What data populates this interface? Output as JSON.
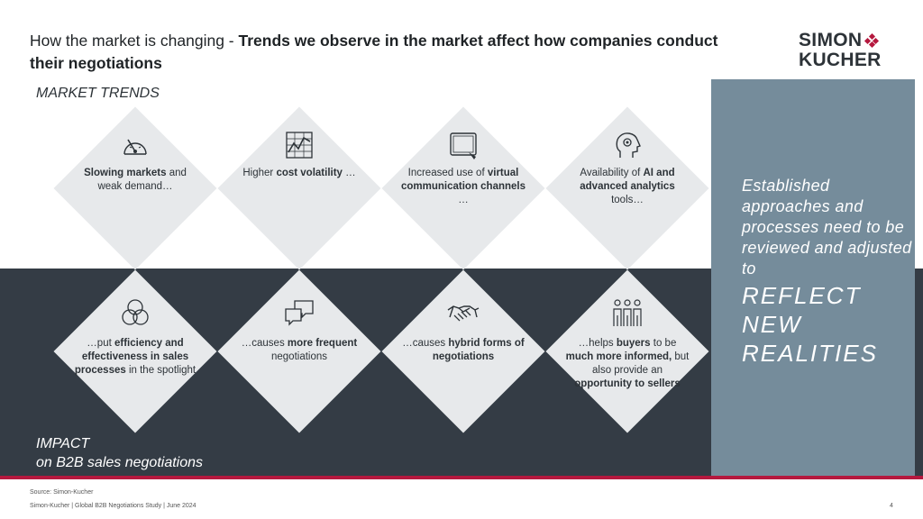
{
  "title": {
    "lead": "How the market is changing - ",
    "bold": "Trends we observe in the market affect how companies conduct their negotiations"
  },
  "logo": {
    "line1": "SIMON",
    "line2": "KUCHER"
  },
  "market_trends_label": "MARKET TRENDS",
  "impact_label": {
    "line1": "IMPACT",
    "line2": "on B2B sales negotiations"
  },
  "trends": [
    {
      "icon": "gauge-icon",
      "parts": [
        {
          "t": "Slowing markets",
          "b": true
        },
        {
          "t": " and weak demand…",
          "b": false
        }
      ]
    },
    {
      "icon": "chart-icon",
      "parts": [
        {
          "t": "Higher",
          "b": false
        },
        {
          "t": "cost volatility",
          "b": true
        },
        {
          "t": "…",
          "b": false
        }
      ]
    },
    {
      "icon": "tablet-icon",
      "parts": [
        {
          "t": "Increased use of ",
          "b": false
        },
        {
          "t": "virtual communication channels",
          "b": true
        },
        {
          "t": "…",
          "b": false
        }
      ]
    },
    {
      "icon": "ai-head-icon",
      "parts": [
        {
          "t": "Availability of ",
          "b": false
        },
        {
          "t": "AI and advanced analytics",
          "b": true
        },
        {
          "t": " tools…",
          "b": false
        }
      ]
    }
  ],
  "impacts": [
    {
      "icon": "venn-icon",
      "parts": [
        {
          "t": "…put ",
          "b": false
        },
        {
          "t": "efficiency and effectiveness in sales processes",
          "b": true
        },
        {
          "t": " in the spotlight",
          "b": false
        }
      ]
    },
    {
      "icon": "chat-bubbles-icon",
      "parts": [
        {
          "t": "…causes ",
          "b": false
        },
        {
          "t": "more frequent",
          "b": true
        },
        {
          "t": " negotiations",
          "b": false
        }
      ]
    },
    {
      "icon": "handshake-icon",
      "parts": [
        {
          "t": "…causes ",
          "b": false
        },
        {
          "t": "hybrid forms of negotiations",
          "b": true
        }
      ]
    },
    {
      "icon": "people-group-icon",
      "parts": [
        {
          "t": "…helps ",
          "b": false
        },
        {
          "t": "buyers",
          "b": true
        },
        {
          "t": " to be ",
          "b": false
        },
        {
          "t": "much more informed,",
          "b": true
        },
        {
          "t": " but also provide an ",
          "b": false
        },
        {
          "t": "opportunity to sellers",
          "b": true
        }
      ]
    }
  ],
  "panel": {
    "text": "Established approaches and processes need to be reviewed and adjusted to",
    "big": "REFLECT NEW REALITIES"
  },
  "footer": {
    "source": "Source: Simon-Kucher",
    "line": "Simon-Kucher | Global B2B Negotiations Study | June 2024",
    "page": "4"
  },
  "colors": {
    "accent": "#b5183e",
    "dark": "#343c45",
    "panel": "#758c9b",
    "diamond": "#e7e9eb"
  }
}
